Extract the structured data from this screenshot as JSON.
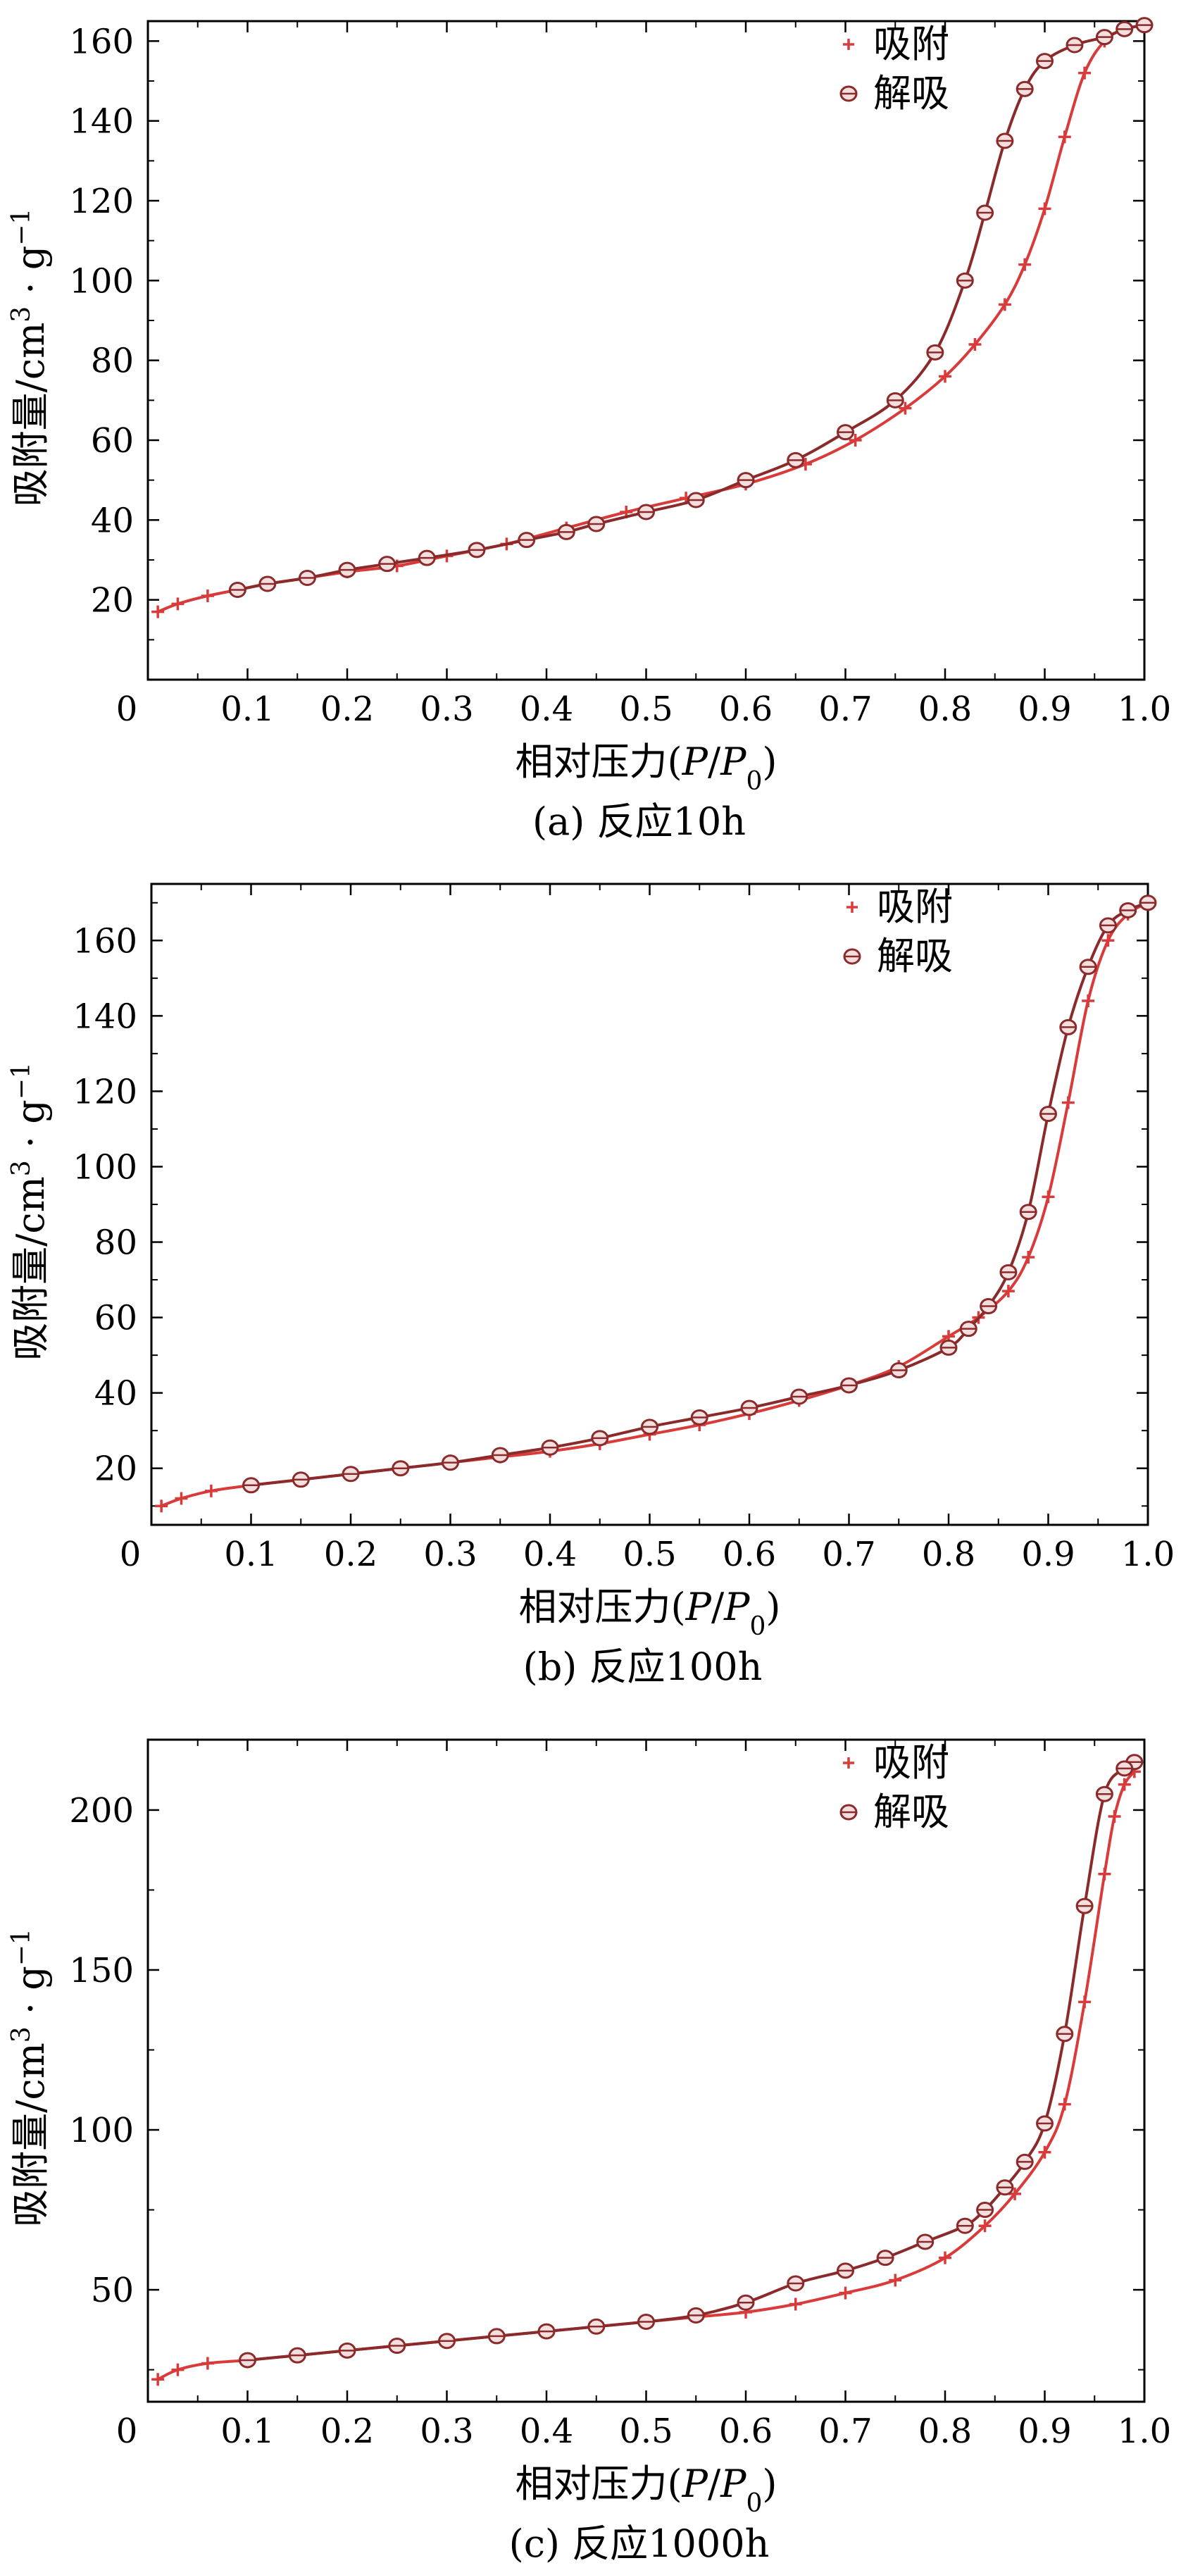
{
  "chart_data": [
    {
      "type": "line",
      "panel_label": "(a) 反应10h",
      "xlabel_prefix": "相对压力(",
      "xlabel_P": "P",
      "xlabel_slash": "/",
      "xlabel_P0": "P",
      "xlabel_sub": "0",
      "xlabel_suffix": ")",
      "ylabel_main": "吸附量/cm",
      "ylabel_sup1": "3",
      "ylabel_mid": " · g",
      "ylabel_sup2": "−1",
      "xlim": [
        0,
        1.0
      ],
      "ylim": [
        0,
        165
      ],
      "xticks": [
        0,
        0.1,
        0.2,
        0.3,
        0.4,
        0.5,
        0.6,
        0.7,
        0.8,
        0.9,
        1.0
      ],
      "xtick_labels": [
        "0",
        "0.1",
        "0.2",
        "0.3",
        "0.4",
        "0.5",
        "0.6",
        "0.7",
        "0.8",
        "0.9",
        "1.0"
      ],
      "yticks": [
        20,
        40,
        60,
        80,
        100,
        120,
        140,
        160
      ],
      "ytick_labels": [
        "20",
        "40",
        "60",
        "80",
        "100",
        "120",
        "140",
        "160"
      ],
      "legend_position": "top-right",
      "series": [
        {
          "name": "吸附",
          "marker": "plus",
          "color": "#d93a3a",
          "x": [
            0.01,
            0.03,
            0.06,
            0.09,
            0.12,
            0.16,
            0.2,
            0.25,
            0.3,
            0.36,
            0.42,
            0.48,
            0.54,
            0.6,
            0.66,
            0.71,
            0.76,
            0.8,
            0.83,
            0.86,
            0.88,
            0.9,
            0.92,
            0.94,
            0.96,
            0.98,
            1.0
          ],
          "y": [
            17,
            19,
            21,
            22.5,
            24,
            25.5,
            27,
            28.5,
            31,
            34,
            38,
            42,
            45.5,
            49,
            54,
            60,
            68,
            76,
            84,
            94,
            104,
            118,
            136,
            152,
            160,
            163,
            164
          ]
        },
        {
          "name": "解吸",
          "marker": "circle",
          "color": "#8b2a2a",
          "x": [
            1.0,
            0.98,
            0.96,
            0.93,
            0.9,
            0.88,
            0.86,
            0.84,
            0.82,
            0.79,
            0.75,
            0.7,
            0.65,
            0.6,
            0.55,
            0.5,
            0.45,
            0.42,
            0.38,
            0.33,
            0.28,
            0.24,
            0.2,
            0.16,
            0.12,
            0.09
          ],
          "y": [
            164,
            163,
            161,
            159,
            155,
            148,
            135,
            117,
            100,
            82,
            70,
            62,
            55,
            50,
            45,
            42,
            39,
            37,
            35,
            32.5,
            30.5,
            29,
            27.5,
            25.5,
            24,
            22.5
          ]
        }
      ]
    },
    {
      "type": "line",
      "panel_label": "(b) 反应100h",
      "xlabel_prefix": "相对压力(",
      "xlabel_P": "P",
      "xlabel_slash": "/",
      "xlabel_P0": "P",
      "xlabel_sub": "0",
      "xlabel_suffix": ")",
      "ylabel_main": "吸附量/cm",
      "ylabel_sup1": "3",
      "ylabel_mid": " · g",
      "ylabel_sup2": "−1",
      "xlim": [
        0,
        1.0
      ],
      "ylim": [
        5,
        175
      ],
      "xticks": [
        0,
        0.1,
        0.2,
        0.3,
        0.4,
        0.5,
        0.6,
        0.7,
        0.8,
        0.9,
        1.0
      ],
      "xtick_labels": [
        "0",
        "0.1",
        "0.2",
        "0.3",
        "0.4",
        "0.5",
        "0.6",
        "0.7",
        "0.8",
        "0.9",
        "1.0"
      ],
      "yticks": [
        20,
        40,
        60,
        80,
        100,
        120,
        140,
        160
      ],
      "ytick_labels": [
        "20",
        "40",
        "60",
        "80",
        "100",
        "120",
        "140",
        "160"
      ],
      "legend_position": "top-right",
      "series": [
        {
          "name": "吸附",
          "marker": "plus",
          "color": "#d93a3a",
          "x": [
            0.01,
            0.03,
            0.06,
            0.1,
            0.15,
            0.2,
            0.25,
            0.3,
            0.35,
            0.4,
            0.45,
            0.5,
            0.55,
            0.6,
            0.65,
            0.7,
            0.75,
            0.8,
            0.83,
            0.86,
            0.88,
            0.9,
            0.92,
            0.94,
            0.96,
            0.98,
            1.0
          ],
          "y": [
            10,
            12,
            14,
            15.5,
            17,
            18.5,
            20,
            21.5,
            23,
            24.5,
            26.5,
            29,
            31.5,
            34.5,
            38,
            42,
            47,
            55,
            60,
            67,
            76,
            92,
            117,
            144,
            160,
            167,
            170
          ]
        },
        {
          "name": "解吸",
          "marker": "circle",
          "color": "#8b2a2a",
          "x": [
            1.0,
            0.98,
            0.96,
            0.94,
            0.92,
            0.9,
            0.88,
            0.86,
            0.84,
            0.82,
            0.8,
            0.75,
            0.7,
            0.65,
            0.6,
            0.55,
            0.5,
            0.45,
            0.4,
            0.35,
            0.3,
            0.25,
            0.2,
            0.15,
            0.1
          ],
          "y": [
            170,
            168,
            164,
            153,
            137,
            114,
            88,
            72,
            63,
            57,
            52,
            46,
            42,
            39,
            36,
            33.5,
            31,
            28,
            25.5,
            23.5,
            21.5,
            20,
            18.5,
            17,
            15.5
          ]
        }
      ]
    },
    {
      "type": "line",
      "panel_label": "(c) 反应1000h",
      "xlabel_prefix": "相对压力(",
      "xlabel_P": "P",
      "xlabel_slash": "/",
      "xlabel_P0": "P",
      "xlabel_sub": "0",
      "xlabel_suffix": ")",
      "ylabel_main": "吸附量/cm",
      "ylabel_sup1": "3",
      "ylabel_mid": " · g",
      "ylabel_sup2": "−1",
      "xlim": [
        0,
        1.0
      ],
      "ylim": [
        15,
        222
      ],
      "xticks": [
        0,
        0.1,
        0.2,
        0.3,
        0.4,
        0.5,
        0.6,
        0.7,
        0.8,
        0.9,
        1.0
      ],
      "xtick_labels": [
        "0",
        "0.1",
        "0.2",
        "0.3",
        "0.4",
        "0.5",
        "0.6",
        "0.7",
        "0.8",
        "0.9",
        "1.0"
      ],
      "yticks": [
        50,
        100,
        150,
        200
      ],
      "ytick_labels": [
        "50",
        "100",
        "150",
        "200"
      ],
      "legend_position": "top-right",
      "series": [
        {
          "name": "吸附",
          "marker": "plus",
          "color": "#d93a3a",
          "x": [
            0.01,
            0.03,
            0.06,
            0.1,
            0.15,
            0.2,
            0.25,
            0.3,
            0.35,
            0.4,
            0.45,
            0.5,
            0.55,
            0.6,
            0.65,
            0.7,
            0.75,
            0.8,
            0.84,
            0.87,
            0.9,
            0.92,
            0.94,
            0.96,
            0.97,
            0.98,
            0.99
          ],
          "y": [
            22,
            25,
            27,
            28,
            29.5,
            31,
            32.5,
            34,
            35.5,
            37,
            38.5,
            40,
            41.5,
            43,
            45.5,
            49,
            53,
            60,
            70,
            80,
            93,
            108,
            140,
            180,
            198,
            208,
            212
          ]
        },
        {
          "name": "解吸",
          "marker": "circle",
          "color": "#8b2a2a",
          "x": [
            0.99,
            0.98,
            0.96,
            0.94,
            0.92,
            0.9,
            0.88,
            0.86,
            0.84,
            0.82,
            0.78,
            0.74,
            0.7,
            0.65,
            0.6,
            0.55,
            0.5,
            0.45,
            0.4,
            0.35,
            0.3,
            0.25,
            0.2,
            0.15,
            0.1
          ],
          "y": [
            215,
            213,
            205,
            170,
            130,
            102,
            90,
            82,
            75,
            70,
            65,
            60,
            56,
            52,
            46,
            42,
            40,
            38.5,
            37,
            35.5,
            34,
            32.5,
            31,
            29.5,
            28
          ]
        }
      ]
    }
  ]
}
